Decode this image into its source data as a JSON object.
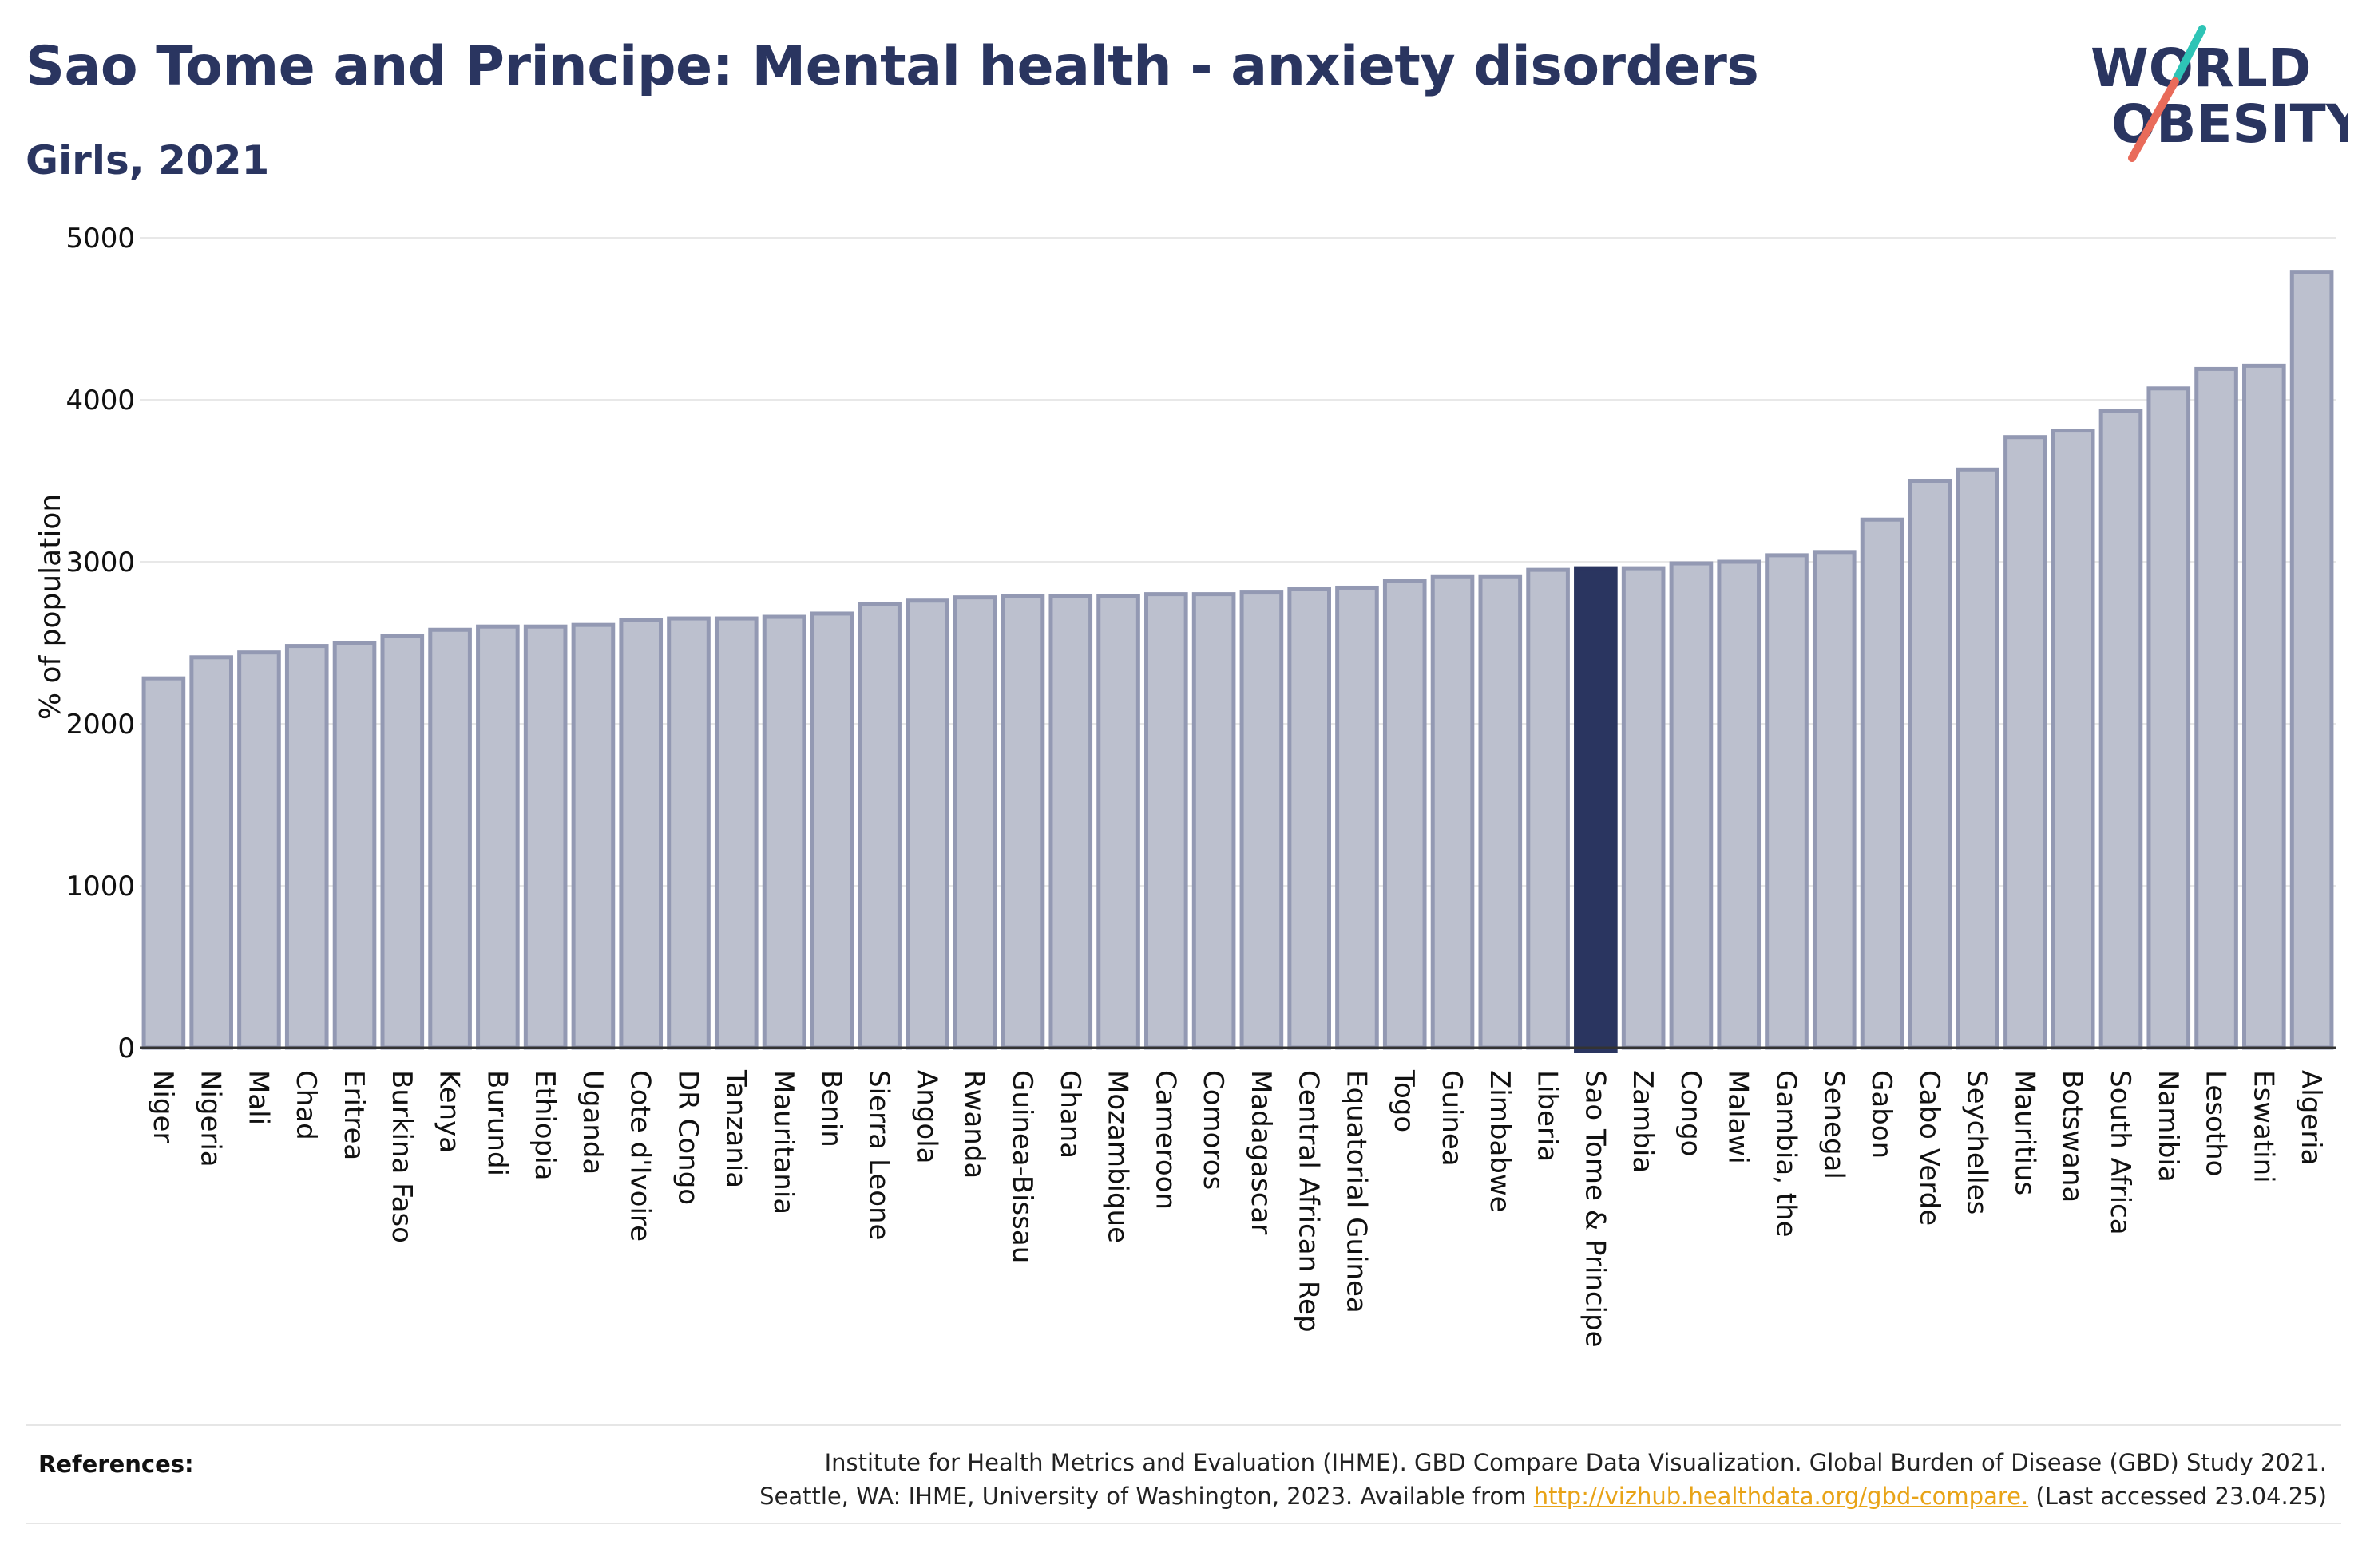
{
  "header": {
    "title": "Sao Tome and Principe: Mental health - anxiety disorders",
    "subtitle": "Girls, 2021"
  },
  "logo": {
    "line1": "WORLD",
    "line2": "OBESITY"
  },
  "colors": {
    "highlight": "#2a3560",
    "bar_fill": "#bcc0ce",
    "bar_stroke": "#9399b3",
    "grid": "#e8e8e8",
    "logo_teal": "#2ec4b6",
    "logo_coral": "#e96b5a"
  },
  "chart_data": {
    "type": "bar",
    "ylabel": "% of population",
    "ylim": [
      0,
      5000
    ],
    "yticks": [
      0,
      1000,
      2000,
      3000,
      4000,
      5000
    ],
    "highlight": "Sao Tome & Principe",
    "categories": [
      "Niger",
      "Nigeria",
      "Mali",
      "Chad",
      "Eritrea",
      "Burkina Faso",
      "Kenya",
      "Burundi",
      "Ethiopia",
      "Uganda",
      "Cote d'Ivoire",
      "DR Congo",
      "Tanzania",
      "Mauritania",
      "Benin",
      "Sierra Leone",
      "Angola",
      "Rwanda",
      "Guinea-Bissau",
      "Ghana",
      "Mozambique",
      "Cameroon",
      "Comoros",
      "Madagascar",
      "Central African Rep",
      "Equatorial Guinea",
      "Togo",
      "Guinea",
      "Zimbabwe",
      "Liberia",
      "Sao Tome & Principe",
      "Zambia",
      "Congo",
      "Malawi",
      "Gambia, the",
      "Senegal",
      "Gabon",
      "Cabo Verde",
      "Seychelles",
      "Mauritius",
      "Botswana",
      "South Africa",
      "Namibia",
      "Lesotho",
      "Eswatini",
      "Algeria"
    ],
    "values": [
      2280,
      2410,
      2440,
      2480,
      2500,
      2540,
      2580,
      2600,
      2600,
      2610,
      2640,
      2650,
      2650,
      2660,
      2680,
      2740,
      2760,
      2780,
      2790,
      2790,
      2790,
      2800,
      2800,
      2810,
      2830,
      2840,
      2880,
      2910,
      2910,
      2950,
      2960,
      2960,
      2990,
      3000,
      3040,
      3060,
      3260,
      3500,
      3570,
      3770,
      3810,
      3930,
      4070,
      4190,
      4210,
      4790
    ]
  },
  "references": {
    "label": "References:",
    "line1": "Institute for Health Metrics and Evaluation (IHME). GBD Compare Data Visualization. Global Burden of Disease (GBD) Study 2021.",
    "line2_pre": "Seattle, WA: IHME, University of Washington, 2023. Available from ",
    "link": "http://vizhub.healthdata.org/gbd-compare.",
    "line2_post": " (Last accessed 23.04.25)"
  }
}
